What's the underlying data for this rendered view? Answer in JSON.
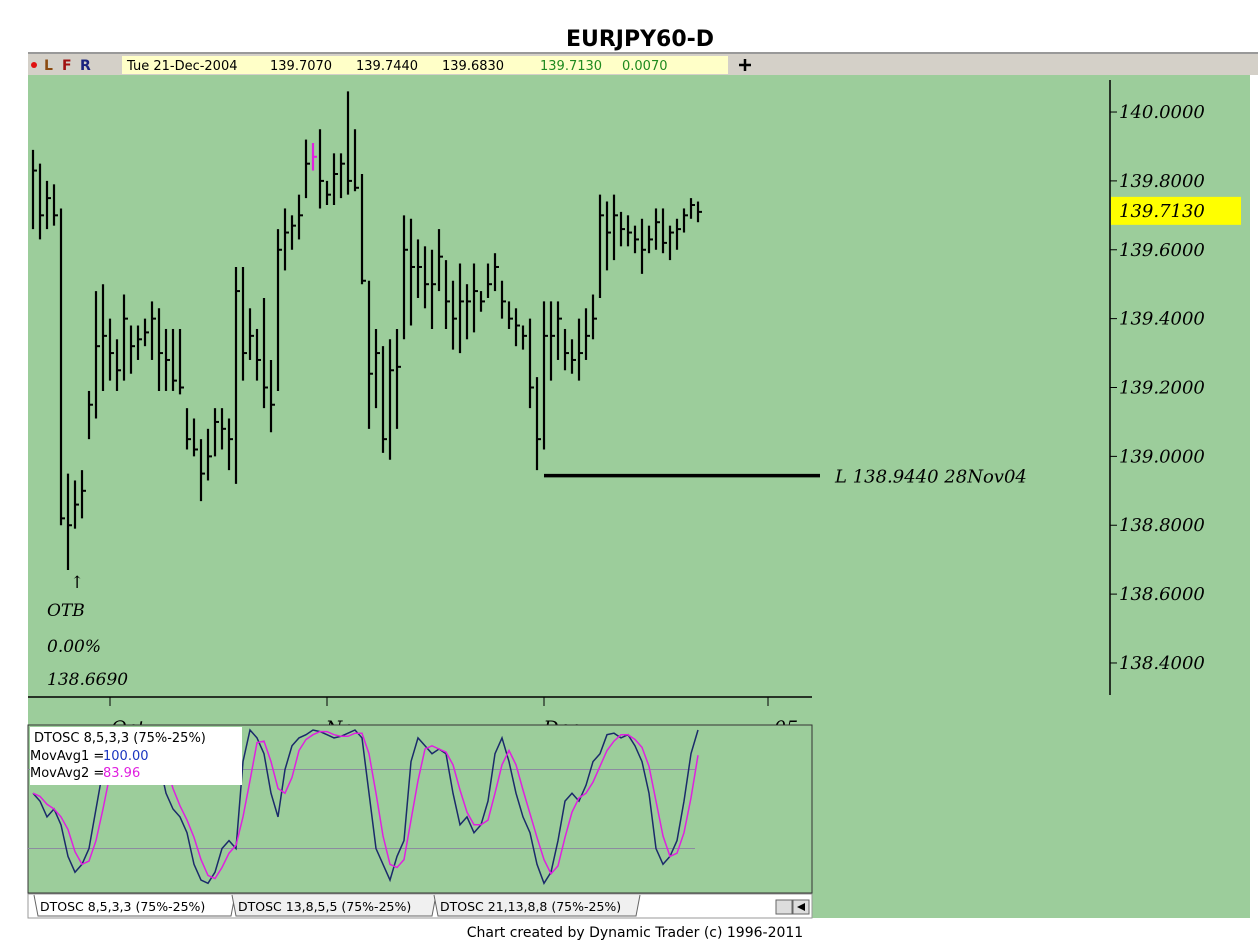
{
  "toolbar": {
    "flags": [
      {
        "text": "L",
        "color": "#8b4a10"
      },
      {
        "text": "F",
        "color": "#a01010"
      },
      {
        "text": "R",
        "color": "#1a237e"
      }
    ],
    "date": "Tue 21-Dec-2004",
    "quotes": [
      "139.7070",
      "139.7440",
      "139.6830",
      "139.7130",
      "0.0070"
    ]
  },
  "chart_data": [
    {
      "type": "hlc",
      "title": "EURJPY60-D",
      "color": "#000000",
      "highlight_index": 40,
      "highlight_color": "#e020e0",
      "high": [
        139.89,
        139.85,
        139.8,
        139.79,
        139.72,
        138.95,
        138.93,
        138.96,
        139.19,
        139.48,
        139.5,
        139.4,
        139.34,
        139.47,
        139.38,
        139.38,
        139.4,
        139.45,
        139.43,
        139.37,
        139.37,
        139.37,
        139.14,
        139.11,
        139.05,
        139.08,
        139.14,
        139.14,
        139.11,
        139.55,
        139.55,
        139.43,
        139.37,
        139.46,
        139.28,
        139.66,
        139.72,
        139.7,
        139.76,
        139.92,
        139.91,
        139.95,
        139.8,
        139.88,
        139.88,
        140.06,
        139.95,
        139.82,
        139.51,
        139.37,
        139.32,
        139.34,
        139.37,
        139.7,
        139.69,
        139.63,
        139.61,
        139.6,
        139.66,
        139.57,
        139.51,
        139.56,
        139.5,
        139.56,
        139.48,
        139.56,
        139.59,
        139.51,
        139.45,
        139.43,
        139.38,
        139.4,
        139.23,
        139.45,
        139.45,
        139.45,
        139.37,
        139.34,
        139.4,
        139.43,
        139.47,
        139.76,
        139.74,
        139.76,
        139.71,
        139.7,
        139.67,
        139.69,
        139.67,
        139.72,
        139.72,
        139.67,
        139.69,
        139.72,
        139.75,
        139.74
      ],
      "low": [
        139.66,
        139.63,
        139.66,
        139.67,
        138.8,
        138.67,
        138.79,
        138.82,
        139.05,
        139.11,
        139.19,
        139.22,
        139.19,
        139.22,
        139.24,
        139.28,
        139.32,
        139.28,
        139.19,
        139.19,
        139.19,
        139.18,
        139.02,
        139.0,
        138.87,
        138.93,
        139.0,
        139.02,
        138.96,
        138.92,
        139.22,
        139.28,
        139.22,
        139.14,
        139.07,
        139.19,
        139.54,
        139.6,
        139.63,
        139.75,
        139.83,
        139.72,
        139.73,
        139.73,
        139.75,
        139.76,
        139.77,
        139.5,
        139.08,
        139.14,
        139.01,
        138.99,
        139.08,
        139.34,
        139.38,
        139.46,
        139.43,
        139.37,
        139.48,
        139.37,
        139.31,
        139.3,
        139.34,
        139.36,
        139.42,
        139.46,
        139.48,
        139.4,
        139.37,
        139.32,
        139.31,
        139.14,
        138.96,
        139.02,
        139.22,
        139.28,
        139.25,
        139.24,
        139.22,
        139.28,
        139.34,
        139.46,
        139.54,
        139.57,
        139.61,
        139.61,
        139.59,
        139.53,
        139.59,
        139.6,
        139.59,
        139.57,
        139.6,
        139.65,
        139.69,
        139.68
      ],
      "close": [
        139.83,
        139.7,
        139.75,
        139.7,
        138.82,
        138.8,
        138.86,
        138.9,
        139.15,
        139.32,
        139.35,
        139.3,
        139.25,
        139.4,
        139.32,
        139.34,
        139.36,
        139.4,
        139.3,
        139.28,
        139.22,
        139.2,
        139.05,
        139.02,
        138.95,
        139.0,
        139.1,
        139.08,
        139.05,
        139.48,
        139.3,
        139.35,
        139.28,
        139.2,
        139.15,
        139.6,
        139.65,
        139.67,
        139.7,
        139.85,
        139.87,
        139.8,
        139.76,
        139.82,
        139.85,
        139.8,
        139.78,
        139.51,
        139.24,
        139.3,
        139.05,
        139.25,
        139.26,
        139.6,
        139.55,
        139.55,
        139.5,
        139.5,
        139.58,
        139.45,
        139.4,
        139.45,
        139.45,
        139.48,
        139.45,
        139.5,
        139.55,
        139.45,
        139.4,
        139.38,
        139.35,
        139.2,
        139.05,
        139.35,
        139.35,
        139.4,
        139.3,
        139.28,
        139.3,
        139.35,
        139.4,
        139.7,
        139.65,
        139.7,
        139.66,
        139.65,
        139.63,
        139.6,
        139.63,
        139.68,
        139.62,
        139.65,
        139.66,
        139.7,
        139.73,
        139.71
      ],
      "ylim": [
        138.307,
        140.093
      ],
      "yticks": [
        {
          "value": 140.0,
          "label": "140.0000"
        },
        {
          "value": 139.8,
          "label": "139.8000"
        },
        {
          "value": 139.6,
          "label": "139.6000"
        },
        {
          "value": 139.4,
          "label": "139.4000"
        },
        {
          "value": 139.2,
          "label": "139.2000"
        },
        {
          "value": 139.0,
          "label": "139.0000"
        },
        {
          "value": 138.8,
          "label": "138.8000"
        },
        {
          "value": 138.6,
          "label": "138.6000"
        },
        {
          "value": 138.4,
          "label": "138.4000"
        }
      ],
      "xlim": [
        -0.714,
        111.286
      ],
      "xticks": [
        {
          "value": 11,
          "label": "Oct"
        },
        {
          "value": 42,
          "label": "Nov"
        },
        {
          "value": 73,
          "label": "Dec"
        },
        {
          "value": 105,
          "label": "05"
        }
      ],
      "last_price": {
        "value": 139.713,
        "label": "139.7130"
      },
      "support": {
        "value": 138.944,
        "index": 73,
        "label": "L 138.9440 28Nov04"
      },
      "low_note": {
        "value": 138.669,
        "index": 6,
        "lines": [
          "↑",
          "OTB",
          "0.00%",
          "138.6690"
        ]
      }
    },
    {
      "type": "line",
      "title": "DTOSC 8,5,3,3 (75%-25%)",
      "ylim": [
        0,
        100
      ],
      "levels": [
        75,
        25
      ],
      "series": [
        {
          "name": "MovAvg1 =",
          "color": "#1a2a6a",
          "value_color": "#1a35c0",
          "value_label": "100.00",
          "values": [
            60,
            55,
            45,
            50,
            40,
            20,
            10,
            15,
            25,
            50,
            75,
            90,
            95,
            85,
            90,
            95,
            97,
            95,
            80,
            60,
            50,
            45,
            35,
            15,
            5,
            3,
            10,
            25,
            30,
            25,
            80,
            100,
            95,
            85,
            60,
            45,
            75,
            90,
            95,
            97,
            100,
            99,
            97,
            95,
            96,
            98,
            100,
            95,
            60,
            25,
            15,
            5,
            20,
            30,
            80,
            95,
            90,
            85,
            88,
            85,
            60,
            40,
            45,
            35,
            40,
            55,
            85,
            95,
            80,
            60,
            45,
            35,
            15,
            3,
            10,
            30,
            55,
            60,
            55,
            65,
            80,
            85,
            97,
            98,
            95,
            97,
            90,
            80,
            60,
            25,
            15,
            20,
            30,
            55,
            85,
            100
          ]
        },
        {
          "name": "MovAvg2 =",
          "color": "#e020e0",
          "value_color": "#e020e0",
          "value_label": "83.96",
          "values": [
            60,
            58,
            53,
            50,
            45,
            37,
            23,
            15,
            17,
            30,
            50,
            72,
            87,
            90,
            90,
            90,
            94,
            96,
            91,
            78,
            63,
            52,
            43,
            32,
            18,
            8,
            6,
            13,
            22,
            27,
            45,
            68,
            92,
            93,
            80,
            63,
            60,
            70,
            87,
            94,
            97,
            99,
            99,
            97,
            96,
            96,
            98,
            98,
            85,
            60,
            33,
            15,
            13,
            18,
            43,
            68,
            88,
            90,
            88,
            86,
            78,
            62,
            48,
            40,
            40,
            43,
            60,
            78,
            87,
            78,
            62,
            47,
            32,
            18,
            9,
            14,
            32,
            48,
            57,
            60,
            67,
            77,
            87,
            93,
            97,
            97,
            94,
            89,
            77,
            55,
            33,
            20,
            22,
            35,
            57,
            83.96
          ]
        }
      ]
    }
  ],
  "tabs": [
    "DTOSC 8,5,3,3 (75%-25%)",
    "DTOSC 13,8,5,5 (75%-25%)",
    "DTOSC 21,13,8,8 (75%-25%)"
  ],
  "footer": "Chart created by Dynamic Trader  (c) 1996-2011"
}
